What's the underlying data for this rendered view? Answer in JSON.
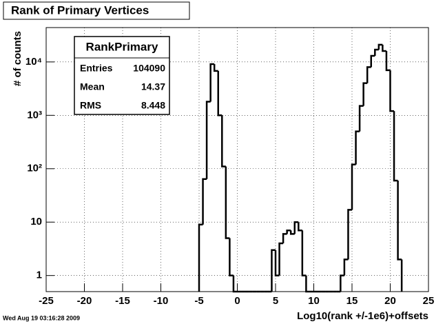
{
  "chart_data": {
    "type": "histogram",
    "title": "Rank of Primary Vertices",
    "xlabel": "Log10(rank +/-1e6)+offsets",
    "ylabel": "# of counts",
    "timestamp": "Wed Aug 19 03:16:28 2009",
    "stats": {
      "name": "RankPrimary",
      "rows": [
        [
          "Entries",
          "104090"
        ],
        [
          "Mean",
          "14.37"
        ],
        [
          "RMS",
          "8.448"
        ]
      ]
    },
    "bins": [
      -5,
      -4.5,
      -4,
      -3.5,
      -3,
      -2.5,
      -2,
      -1.5,
      -1,
      -0.5,
      0,
      0.5,
      1,
      1.5,
      2,
      2.5,
      3,
      3.5,
      4,
      4.5,
      5,
      5.5,
      6,
      6.5,
      7,
      7.5,
      8,
      8.5,
      9,
      9.5,
      10,
      10.5,
      11,
      11.5,
      12,
      12.5,
      13,
      13.5,
      14,
      14.5,
      15,
      15.5,
      16,
      16.5,
      17,
      17.5,
      18,
      18.5,
      19,
      19.5,
      20,
      20.5,
      21,
      21.5
    ],
    "counts": [
      9,
      64,
      1800,
      9100,
      6800,
      1000,
      110,
      5,
      1,
      0,
      0,
      0,
      0,
      0,
      0,
      0,
      0,
      0,
      0,
      3,
      1,
      4,
      6,
      7,
      6,
      10,
      7,
      1,
      0,
      0,
      0,
      0,
      0,
      0,
      0,
      0,
      0,
      1,
      2,
      17,
      120,
      500,
      1500,
      4000,
      8000,
      13000,
      17000,
      21000,
      16000,
      7000,
      1200,
      60,
      2
    ],
    "color": "#000000",
    "xlim": [
      -25,
      25
    ],
    "xticks": [
      -25,
      -20,
      -15,
      -10,
      -5,
      0,
      5,
      10,
      15,
      20,
      25
    ],
    "ylim": [
      0.5,
      44000
    ],
    "yticks": [
      1,
      10,
      {
        "value": 100,
        "label": "10²"
      },
      {
        "value": 1000,
        "label": "10³"
      },
      {
        "value": 10000,
        "label": "10⁴"
      }
    ],
    "log_y": true,
    "grid": true
  }
}
